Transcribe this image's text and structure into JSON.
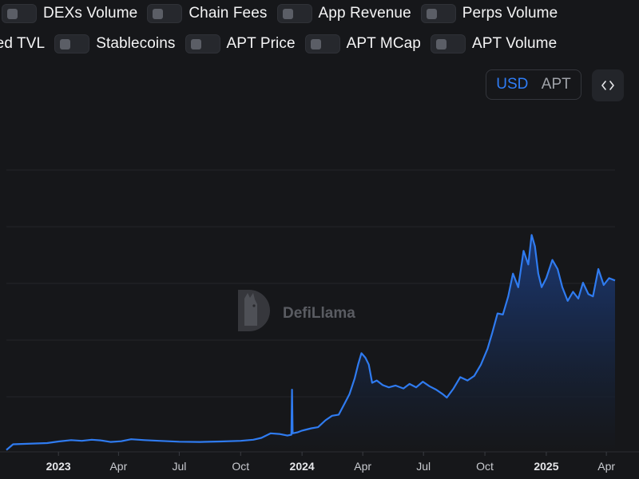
{
  "toggles_row1": [
    {
      "label": "DEXs Volume",
      "on": false
    },
    {
      "label": "Chain Fees",
      "on": false
    },
    {
      "label": "App Revenue",
      "on": false
    },
    {
      "label": "Perps Volume",
      "on": false
    }
  ],
  "toggles_row2": [
    {
      "label": "Stablecoins",
      "on": false
    },
    {
      "label": "APT Price",
      "on": false
    },
    {
      "label": "APT MCap",
      "on": false
    },
    {
      "label": "APT Volume",
      "on": false
    }
  ],
  "row2_partial_label": "ged TVL",
  "currency": {
    "usd": "USD",
    "apt": "APT",
    "selected": "USD"
  },
  "embed_icon": "code-icon",
  "watermark": "DefiLlama",
  "colors": {
    "background": "#16171a",
    "line": "#2f7bf0",
    "area_top": "#1c3a78",
    "area_bottom": "#16171a",
    "accent": "#2f7df6"
  },
  "chart_data": {
    "type": "area",
    "title": "",
    "xlabel": "",
    "ylabel": "",
    "grid": true,
    "x_ticks": [
      {
        "label": "2023",
        "date": "2023-01-01",
        "year": true
      },
      {
        "label": "Apr",
        "date": "2023-04-01",
        "year": false
      },
      {
        "label": "Jul",
        "date": "2023-07-01",
        "year": false
      },
      {
        "label": "Oct",
        "date": "2023-10-01",
        "year": false
      },
      {
        "label": "2024",
        "date": "2024-01-01",
        "year": true
      },
      {
        "label": "Apr",
        "date": "2024-04-01",
        "year": false
      },
      {
        "label": "Jul",
        "date": "2024-07-01",
        "year": false
      },
      {
        "label": "Oct",
        "date": "2024-10-01",
        "year": false
      },
      {
        "label": "2025",
        "date": "2025-01-01",
        "year": true
      },
      {
        "label": "Apr",
        "date": "2025-04-01",
        "year": false
      }
    ],
    "xlim": [
      "2022-10-15",
      "2025-04-14"
    ],
    "ylim": [
      0,
      100
    ],
    "series": [
      {
        "points": [
          [
            "2022-10-15",
            0.5
          ],
          [
            "2022-10-25",
            3.0
          ],
          [
            "2022-11-15",
            3.2
          ],
          [
            "2022-12-15",
            3.5
          ],
          [
            "2023-01-01",
            4.2
          ],
          [
            "2023-01-20",
            4.8
          ],
          [
            "2023-02-05",
            4.5
          ],
          [
            "2023-02-20",
            5.0
          ],
          [
            "2023-03-05",
            4.7
          ],
          [
            "2023-03-20",
            4.0
          ],
          [
            "2023-04-05",
            4.3
          ],
          [
            "2023-04-20",
            5.2
          ],
          [
            "2023-05-10",
            4.8
          ],
          [
            "2023-06-01",
            4.5
          ],
          [
            "2023-07-01",
            4.1
          ],
          [
            "2023-08-01",
            4.0
          ],
          [
            "2023-09-01",
            4.2
          ],
          [
            "2023-10-01",
            4.5
          ],
          [
            "2023-10-20",
            5.0
          ],
          [
            "2023-11-01",
            5.8
          ],
          [
            "2023-11-15",
            7.8
          ],
          [
            "2023-11-28",
            7.5
          ],
          [
            "2023-12-10",
            6.8
          ],
          [
            "2023-12-16",
            7.2
          ],
          [
            "2023-12-17",
            27.0
          ],
          [
            "2023-12-18",
            7.8
          ],
          [
            "2023-12-25",
            8.2
          ],
          [
            "2024-01-01",
            9.0
          ],
          [
            "2024-01-15",
            10.0
          ],
          [
            "2024-01-25",
            10.5
          ],
          [
            "2024-02-05",
            13.5
          ],
          [
            "2024-02-15",
            15.5
          ],
          [
            "2024-02-25",
            16.0
          ],
          [
            "2024-03-05",
            21.0
          ],
          [
            "2024-03-12",
            25.0
          ],
          [
            "2024-03-20",
            32.0
          ],
          [
            "2024-03-25",
            38.0
          ],
          [
            "2024-03-30",
            43.0
          ],
          [
            "2024-04-05",
            41.0
          ],
          [
            "2024-04-10",
            38.0
          ],
          [
            "2024-04-15",
            30.0
          ],
          [
            "2024-04-22",
            31.0
          ],
          [
            "2024-05-01",
            29.0
          ],
          [
            "2024-05-10",
            28.0
          ],
          [
            "2024-05-20",
            28.8
          ],
          [
            "2024-06-01",
            27.5
          ],
          [
            "2024-06-10",
            29.5
          ],
          [
            "2024-06-20",
            28.0
          ],
          [
            "2024-06-30",
            30.5
          ],
          [
            "2024-07-10",
            28.5
          ],
          [
            "2024-07-20",
            27.0
          ],
          [
            "2024-07-30",
            25.0
          ],
          [
            "2024-08-05",
            23.5
          ],
          [
            "2024-08-15",
            27.5
          ],
          [
            "2024-08-25",
            32.5
          ],
          [
            "2024-09-05",
            31.0
          ],
          [
            "2024-09-15",
            33.0
          ],
          [
            "2024-09-25",
            38.0
          ],
          [
            "2024-10-05",
            45.0
          ],
          [
            "2024-10-12",
            52.0
          ],
          [
            "2024-10-20",
            60.5
          ],
          [
            "2024-10-28",
            60.0
          ],
          [
            "2024-11-05",
            68.0
          ],
          [
            "2024-11-12",
            78.0
          ],
          [
            "2024-11-20",
            72.0
          ],
          [
            "2024-11-28",
            88.0
          ],
          [
            "2024-12-05",
            82.0
          ],
          [
            "2024-12-10",
            95.0
          ],
          [
            "2024-12-15",
            90.0
          ],
          [
            "2024-12-20",
            78.0
          ],
          [
            "2024-12-25",
            72.0
          ],
          [
            "2025-01-01",
            76.0
          ],
          [
            "2025-01-10",
            84.0
          ],
          [
            "2025-01-18",
            80.0
          ],
          [
            "2025-01-25",
            72.0
          ],
          [
            "2025-02-02",
            66.0
          ],
          [
            "2025-02-10",
            70.0
          ],
          [
            "2025-02-18",
            67.0
          ],
          [
            "2025-02-25",
            74.0
          ],
          [
            "2025-03-05",
            69.0
          ],
          [
            "2025-03-12",
            68.0
          ],
          [
            "2025-03-20",
            80.0
          ],
          [
            "2025-03-28",
            73.0
          ],
          [
            "2025-04-05",
            76.0
          ],
          [
            "2025-04-14",
            75.0
          ]
        ]
      }
    ]
  }
}
